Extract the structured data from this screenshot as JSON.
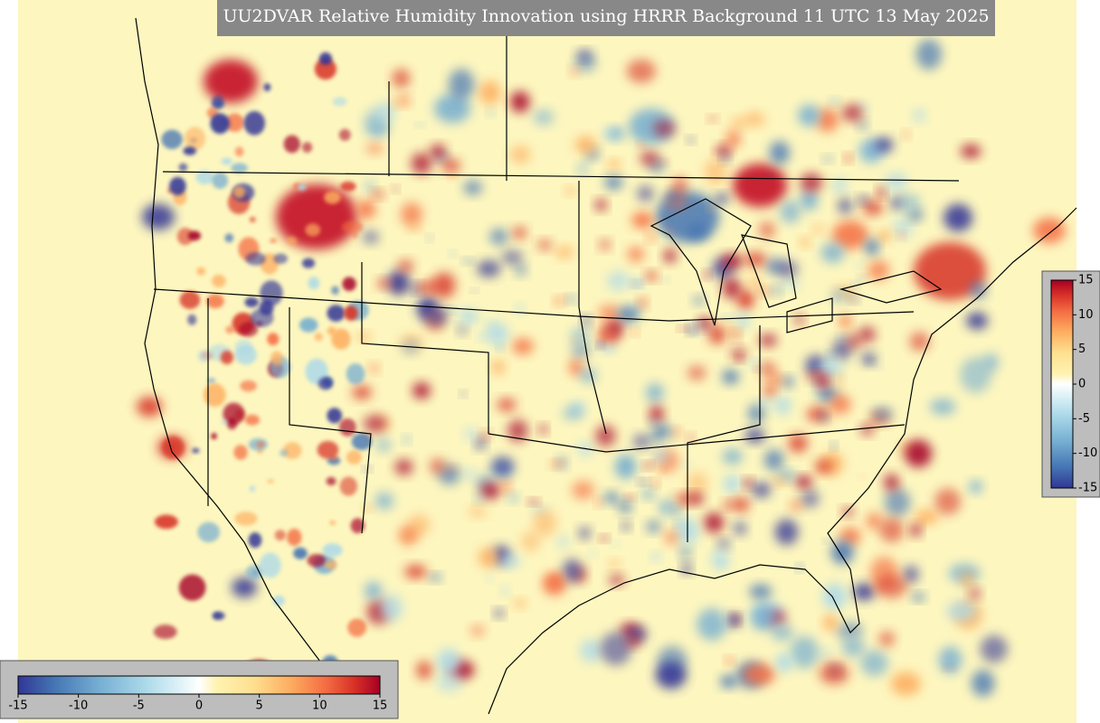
{
  "title": "UU2DVAR Relative Humidity Innovation using HRRR Background 11 UTC 13 May 2025",
  "colorbars": [
    {
      "orientation": "horizontal",
      "range": [
        -15,
        15
      ],
      "ticks": [
        -15,
        -10,
        -5,
        0,
        5,
        10,
        15
      ]
    },
    {
      "orientation": "vertical",
      "range": [
        -15,
        15
      ],
      "ticks": [
        15,
        10,
        5,
        0,
        -5,
        -10,
        -15
      ]
    }
  ]
}
